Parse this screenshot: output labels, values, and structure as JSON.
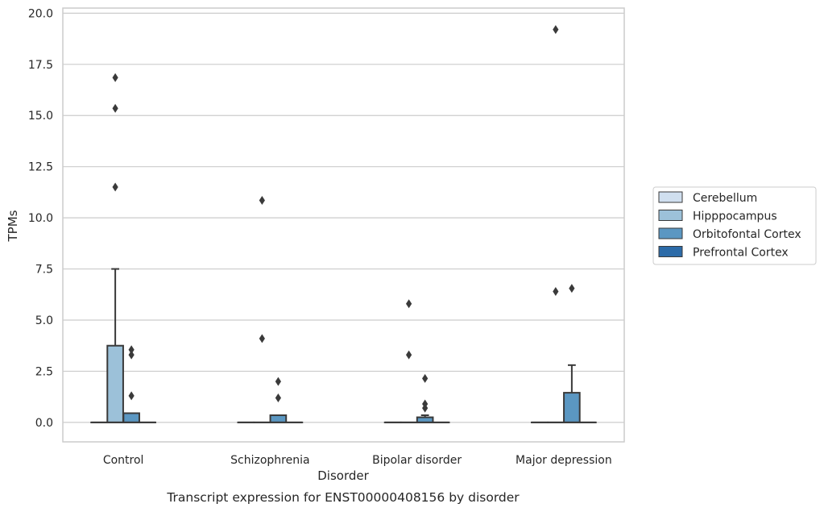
{
  "chart_data": {
    "type": "box",
    "xlabel": "Disorder",
    "ylabel": "TPMs",
    "caption": "Transcript expression for ENST00000408156 by disorder",
    "ylim": [
      -0.95,
      20.25
    ],
    "yticks": [
      0.0,
      2.5,
      5.0,
      7.5,
      10.0,
      12.5,
      15.0,
      17.5,
      20.0
    ],
    "ytick_labels": [
      "0.0",
      "2.5",
      "5.0",
      "7.5",
      "10.0",
      "12.5",
      "15.0",
      "17.5",
      "20.0"
    ],
    "grid": "horizontal",
    "legend_position": "right",
    "categories": [
      "Control",
      "Schizophrenia",
      "Bipolar disorder",
      "Major depression"
    ],
    "series": [
      {
        "name": "Cerebellum",
        "color": "#d0dfef",
        "boxes": [
          {
            "q1": 0,
            "median": 0,
            "q3": 0,
            "whisker_low": 0,
            "whisker_high": 0,
            "outliers": []
          },
          {
            "q1": 0,
            "median": 0,
            "q3": 0,
            "whisker_low": 0,
            "whisker_high": 0,
            "outliers": []
          },
          {
            "q1": 0,
            "median": 0,
            "q3": 0,
            "whisker_low": 0,
            "whisker_high": 0,
            "outliers": []
          },
          {
            "q1": 0,
            "median": 0,
            "q3": 0,
            "whisker_low": 0,
            "whisker_high": 0,
            "outliers": []
          }
        ]
      },
      {
        "name": "Hipppocampus",
        "color": "#9cc1d9",
        "boxes": [
          {
            "q1": 0,
            "median": 0,
            "q3": 3.75,
            "whisker_low": 0,
            "whisker_high": 7.5,
            "outliers": [
              11.5,
              15.35,
              16.85
            ]
          },
          {
            "q1": 0,
            "median": 0,
            "q3": 0,
            "whisker_low": 0,
            "whisker_high": 0,
            "outliers": [
              4.1,
              10.85
            ]
          },
          {
            "q1": 0,
            "median": 0,
            "q3": 0,
            "whisker_low": 0,
            "whisker_high": 0,
            "outliers": [
              3.3,
              5.8
            ]
          },
          {
            "q1": 0,
            "median": 0,
            "q3": 0,
            "whisker_low": 0,
            "whisker_high": 0,
            "outliers": [
              6.4,
              19.2
            ]
          }
        ]
      },
      {
        "name": "Orbitofontal Cortex",
        "color": "#5b97c2",
        "boxes": [
          {
            "q1": 0,
            "median": 0,
            "q3": 0.45,
            "whisker_low": 0,
            "whisker_high": 0.45,
            "outliers": [
              1.3,
              3.3,
              3.55
            ]
          },
          {
            "q1": 0,
            "median": 0,
            "q3": 0.35,
            "whisker_low": 0,
            "whisker_high": 0.35,
            "outliers": [
              1.2,
              2.0
            ]
          },
          {
            "q1": 0,
            "median": 0,
            "q3": 0.25,
            "whisker_low": 0,
            "whisker_high": 0.35,
            "outliers": [
              0.7,
              0.9,
              2.15
            ]
          },
          {
            "q1": 0,
            "median": 0,
            "q3": 1.45,
            "whisker_low": 0,
            "whisker_high": 2.8,
            "outliers": [
              6.55
            ]
          }
        ]
      },
      {
        "name": "Prefrontal Cortex",
        "color": "#2c6ba8",
        "boxes": [
          {
            "q1": 0,
            "median": 0,
            "q3": 0,
            "whisker_low": 0,
            "whisker_high": 0,
            "outliers": []
          },
          {
            "q1": 0,
            "median": 0,
            "q3": 0,
            "whisker_low": 0,
            "whisker_high": 0,
            "outliers": []
          },
          {
            "q1": 0,
            "median": 0,
            "q3": 0,
            "whisker_low": 0,
            "whisker_high": 0,
            "outliers": []
          },
          {
            "q1": 0,
            "median": 0,
            "q3": 0,
            "whisker_low": 0,
            "whisker_high": 0,
            "outliers": []
          }
        ]
      }
    ],
    "box_edge_color": "#3a3a3a",
    "grid_color": "#cccccc"
  }
}
